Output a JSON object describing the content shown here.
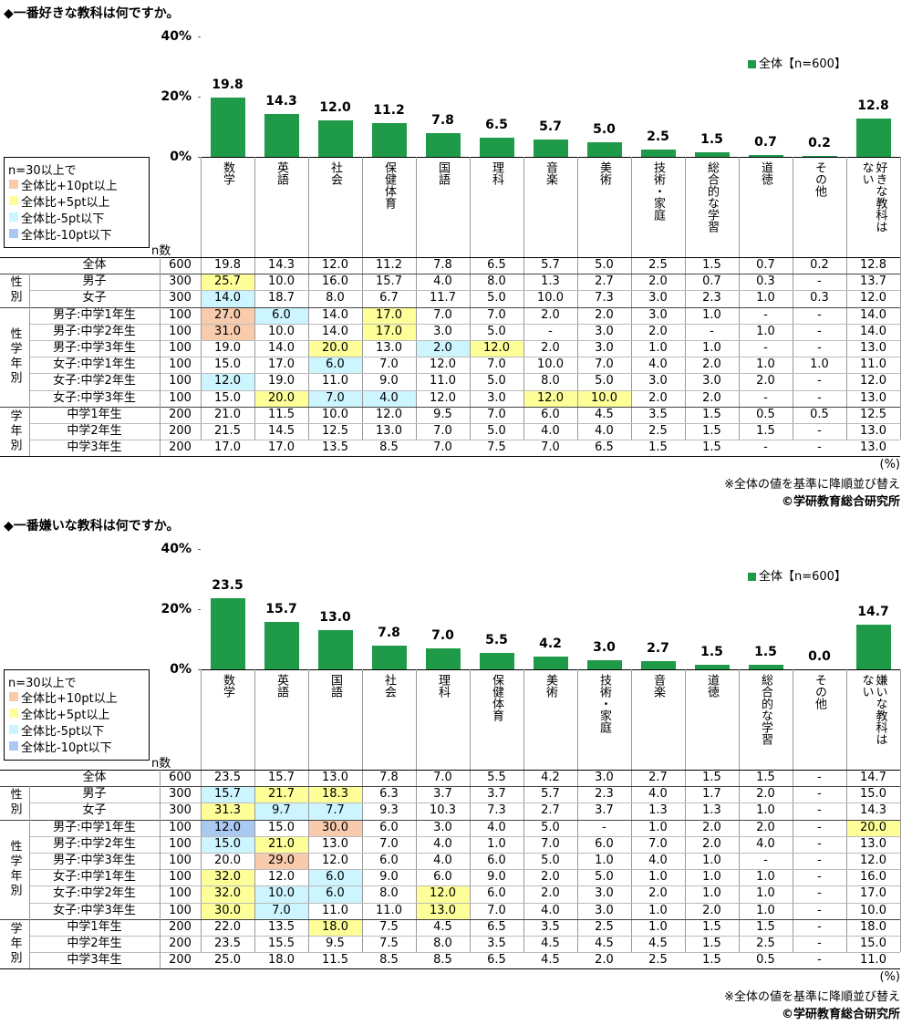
{
  "chart_data": [
    {
      "type": "bar",
      "title": "◆一番好きな教科は何ですか。",
      "categories": [
        "数学",
        "英語",
        "社会",
        "保健体育",
        "国語",
        "理科",
        "音楽",
        "美術",
        "技術・家庭",
        "総合的な学習",
        "道徳",
        "その他",
        "好きな教科はない"
      ],
      "series": [
        {
          "name": "全体【n=600】",
          "color": "#1e9a48",
          "values": [
            19.8,
            14.3,
            12.0,
            11.2,
            7.8,
            6.5,
            5.7,
            5.0,
            2.5,
            1.5,
            0.7,
            0.2,
            12.8
          ],
          "value_labels": [
            "19.8",
            "14.3",
            "12.0",
            "11.2",
            "7.8",
            "6.5",
            "5.7",
            "5.0",
            "2.5",
            "1.5",
            "0.7",
            "0.2",
            "12.8"
          ]
        }
      ],
      "ylim": [
        0,
        40
      ],
      "yticks": [
        {
          "value": 0,
          "label": "0%"
        },
        {
          "value": 20,
          "label": "20%"
        },
        {
          "value": 40,
          "label": "40%"
        }
      ]
    },
    {
      "type": "bar",
      "title": "◆一番嫌いな教科は何ですか。",
      "categories": [
        "数学",
        "英語",
        "国語",
        "社会",
        "理科",
        "保健体育",
        "美術",
        "技術・家庭",
        "音楽",
        "道徳",
        "総合的な学習",
        "その他",
        "嫌いな教科はない"
      ],
      "series": [
        {
          "name": "全体【n=600】",
          "color": "#1e9a48",
          "values": [
            23.5,
            15.7,
            13.0,
            7.8,
            7.0,
            5.5,
            4.2,
            3.0,
            2.7,
            1.5,
            1.5,
            0.0,
            14.7
          ],
          "value_labels": [
            "23.5",
            "15.7",
            "13.0",
            "7.8",
            "7.0",
            "5.5",
            "4.2",
            "3.0",
            "2.7",
            "1.5",
            "1.5",
            "0.0",
            "14.7"
          ]
        }
      ],
      "ylim": [
        0,
        40
      ],
      "yticks": [
        {
          "value": 0,
          "label": "0%"
        },
        {
          "value": 20,
          "label": "20%"
        },
        {
          "value": 40,
          "label": "40%"
        }
      ]
    }
  ],
  "tables": [
    {
      "n_label": "n数",
      "legend": {
        "title": "n=30以上で",
        "items": [
          {
            "label": "全体比+10pt以上",
            "color": "#f8cbad"
          },
          {
            "label": "全体比+5pt以上",
            "color": "#ffff99"
          },
          {
            "label": "全体比-5pt以下",
            "color": "#ccf5ff"
          },
          {
            "label": "全体比-10pt以下",
            "color": "#a9c9f0"
          }
        ]
      },
      "total": {
        "label": "全体",
        "n": 600,
        "values": [
          "19.8",
          "14.3",
          "12.0",
          "11.2",
          "7.8",
          "6.5",
          "5.7",
          "5.0",
          "2.5",
          "1.5",
          "0.7",
          "0.2",
          "12.8"
        ]
      },
      "groups": [
        {
          "label": "性別",
          "rows": [
            {
              "label": "男子",
              "n": 300,
              "values": [
                "25.7",
                "10.0",
                "16.0",
                "15.7",
                "4.0",
                "8.0",
                "1.3",
                "2.7",
                "2.0",
                "0.7",
                "0.3",
                "-",
                "13.7"
              ],
              "cell_colors": {
                "0": "#ffff99"
              }
            },
            {
              "label": "女子",
              "n": 300,
              "values": [
                "14.0",
                "18.7",
                "8.0",
                "6.7",
                "11.7",
                "5.0",
                "10.0",
                "7.3",
                "3.0",
                "2.3",
                "1.0",
                "0.3",
                "12.0"
              ],
              "cell_colors": {
                "0": "#ccf5ff"
              }
            }
          ]
        },
        {
          "label": "性学年別",
          "rows": [
            {
              "label": "男子:中学1年生",
              "n": 100,
              "values": [
                "27.0",
                "6.0",
                "14.0",
                "17.0",
                "7.0",
                "7.0",
                "2.0",
                "2.0",
                "3.0",
                "1.0",
                "-",
                "-",
                "14.0"
              ],
              "cell_colors": {
                "0": "#f8cbad",
                "1": "#ccf5ff",
                "3": "#ffff99"
              }
            },
            {
              "label": "男子:中学2年生",
              "n": 100,
              "values": [
                "31.0",
                "10.0",
                "14.0",
                "17.0",
                "3.0",
                "5.0",
                "-",
                "3.0",
                "2.0",
                "-",
                "1.0",
                "-",
                "14.0"
              ],
              "cell_colors": {
                "0": "#f8cbad",
                "3": "#ffff99"
              }
            },
            {
              "label": "男子:中学3年生",
              "n": 100,
              "values": [
                "19.0",
                "14.0",
                "20.0",
                "13.0",
                "2.0",
                "12.0",
                "2.0",
                "3.0",
                "1.0",
                "1.0",
                "-",
                "-",
                "13.0"
              ],
              "cell_colors": {
                "2": "#ffff99",
                "4": "#ccf5ff",
                "5": "#ffff99"
              }
            },
            {
              "label": "女子:中学1年生",
              "n": 100,
              "values": [
                "15.0",
                "17.0",
                "6.0",
                "7.0",
                "12.0",
                "7.0",
                "10.0",
                "7.0",
                "4.0",
                "2.0",
                "1.0",
                "1.0",
                "11.0"
              ],
              "cell_colors": {
                "2": "#ccf5ff"
              }
            },
            {
              "label": "女子:中学2年生",
              "n": 100,
              "values": [
                "12.0",
                "19.0",
                "11.0",
                "9.0",
                "11.0",
                "5.0",
                "8.0",
                "5.0",
                "3.0",
                "3.0",
                "2.0",
                "-",
                "12.0"
              ],
              "cell_colors": {
                "0": "#ccf5ff"
              }
            },
            {
              "label": "女子:中学3年生",
              "n": 100,
              "values": [
                "15.0",
                "20.0",
                "7.0",
                "4.0",
                "12.0",
                "3.0",
                "12.0",
                "10.0",
                "2.0",
                "2.0",
                "-",
                "-",
                "13.0"
              ],
              "cell_colors": {
                "1": "#ffff99",
                "2": "#ccf5ff",
                "3": "#ccf5ff",
                "6": "#ffff99",
                "7": "#ffff99"
              }
            }
          ]
        },
        {
          "label": "学年別",
          "rows": [
            {
              "label": "中学1年生",
              "n": 200,
              "values": [
                "21.0",
                "11.5",
                "10.0",
                "12.0",
                "9.5",
                "7.0",
                "6.0",
                "4.5",
                "3.5",
                "1.5",
                "0.5",
                "0.5",
                "12.5"
              ],
              "cell_colors": {}
            },
            {
              "label": "中学2年生",
              "n": 200,
              "values": [
                "21.5",
                "14.5",
                "12.5",
                "13.0",
                "7.0",
                "5.0",
                "4.0",
                "4.0",
                "2.5",
                "1.5",
                "1.5",
                "-",
                "13.0"
              ],
              "cell_colors": {}
            },
            {
              "label": "中学3年生",
              "n": 200,
              "values": [
                "17.0",
                "17.0",
                "13.5",
                "8.5",
                "7.0",
                "7.5",
                "7.0",
                "6.5",
                "1.5",
                "1.5",
                "-",
                "-",
                "13.0"
              ],
              "cell_colors": {}
            }
          ]
        }
      ],
      "footnotes": {
        "unit": "(%)",
        "sort_note": "※全体の値を基準に降順並び替え",
        "copyright": "©学研教育総合研究所"
      }
    },
    {
      "n_label": "n数",
      "legend": {
        "title": "n=30以上で",
        "items": [
          {
            "label": "全体比+10pt以上",
            "color": "#f8cbad"
          },
          {
            "label": "全体比+5pt以上",
            "color": "#ffff99"
          },
          {
            "label": "全体比-5pt以下",
            "color": "#ccf5ff"
          },
          {
            "label": "全体比-10pt以下",
            "color": "#a9c9f0"
          }
        ]
      },
      "total": {
        "label": "全体",
        "n": 600,
        "values": [
          "23.5",
          "15.7",
          "13.0",
          "7.8",
          "7.0",
          "5.5",
          "4.2",
          "3.0",
          "2.7",
          "1.5",
          "1.5",
          "-",
          "14.7"
        ]
      },
      "groups": [
        {
          "label": "性別",
          "rows": [
            {
              "label": "男子",
              "n": 300,
              "values": [
                "15.7",
                "21.7",
                "18.3",
                "6.3",
                "3.7",
                "3.7",
                "5.7",
                "2.3",
                "4.0",
                "1.7",
                "2.0",
                "-",
                "15.0"
              ],
              "cell_colors": {
                "0": "#ccf5ff",
                "1": "#ffff99",
                "2": "#ffff99"
              }
            },
            {
              "label": "女子",
              "n": 300,
              "values": [
                "31.3",
                "9.7",
                "7.7",
                "9.3",
                "10.3",
                "7.3",
                "2.7",
                "3.7",
                "1.3",
                "1.3",
                "1.0",
                "-",
                "14.3"
              ],
              "cell_colors": {
                "0": "#ffff99",
                "1": "#ccf5ff",
                "2": "#ccf5ff"
              }
            }
          ]
        },
        {
          "label": "性学年別",
          "rows": [
            {
              "label": "男子:中学1年生",
              "n": 100,
              "values": [
                "12.0",
                "15.0",
                "30.0",
                "6.0",
                "3.0",
                "4.0",
                "5.0",
                "-",
                "1.0",
                "2.0",
                "2.0",
                "-",
                "20.0"
              ],
              "cell_colors": {
                "0": "#a9c9f0",
                "2": "#f8cbad",
                "12": "#ffff99"
              }
            },
            {
              "label": "男子:中学2年生",
              "n": 100,
              "values": [
                "15.0",
                "21.0",
                "13.0",
                "7.0",
                "4.0",
                "1.0",
                "7.0",
                "6.0",
                "7.0",
                "2.0",
                "4.0",
                "-",
                "13.0"
              ],
              "cell_colors": {
                "0": "#ccf5ff",
                "1": "#ffff99"
              }
            },
            {
              "label": "男子:中学3年生",
              "n": 100,
              "values": [
                "20.0",
                "29.0",
                "12.0",
                "6.0",
                "4.0",
                "6.0",
                "5.0",
                "1.0",
                "4.0",
                "1.0",
                "-",
                "-",
                "12.0"
              ],
              "cell_colors": {
                "1": "#f8cbad"
              }
            },
            {
              "label": "女子:中学1年生",
              "n": 100,
              "values": [
                "32.0",
                "12.0",
                "6.0",
                "9.0",
                "6.0",
                "9.0",
                "2.0",
                "5.0",
                "1.0",
                "1.0",
                "1.0",
                "-",
                "16.0"
              ],
              "cell_colors": {
                "0": "#ffff99",
                "2": "#ccf5ff"
              }
            },
            {
              "label": "女子:中学2年生",
              "n": 100,
              "values": [
                "32.0",
                "10.0",
                "6.0",
                "8.0",
                "12.0",
                "6.0",
                "2.0",
                "3.0",
                "2.0",
                "1.0",
                "1.0",
                "-",
                "17.0"
              ],
              "cell_colors": {
                "0": "#ffff99",
                "1": "#ccf5ff",
                "2": "#ccf5ff",
                "4": "#ffff99"
              }
            },
            {
              "label": "女子:中学3年生",
              "n": 100,
              "values": [
                "30.0",
                "7.0",
                "11.0",
                "11.0",
                "13.0",
                "7.0",
                "4.0",
                "3.0",
                "1.0",
                "2.0",
                "1.0",
                "-",
                "10.0"
              ],
              "cell_colors": {
                "0": "#ffff99",
                "1": "#ccf5ff",
                "4": "#ffff99"
              }
            }
          ]
        },
        {
          "label": "学年別",
          "rows": [
            {
              "label": "中学1年生",
              "n": 200,
              "values": [
                "22.0",
                "13.5",
                "18.0",
                "7.5",
                "4.5",
                "6.5",
                "3.5",
                "2.5",
                "1.0",
                "1.5",
                "1.5",
                "-",
                "18.0"
              ],
              "cell_colors": {
                "2": "#ffff99"
              }
            },
            {
              "label": "中学2年生",
              "n": 200,
              "values": [
                "23.5",
                "15.5",
                "9.5",
                "7.5",
                "8.0",
                "3.5",
                "4.5",
                "4.5",
                "4.5",
                "1.5",
                "2.5",
                "-",
                "15.0"
              ],
              "cell_colors": {}
            },
            {
              "label": "中学3年生",
              "n": 200,
              "values": [
                "25.0",
                "18.0",
                "11.5",
                "8.5",
                "8.5",
                "6.5",
                "4.5",
                "2.0",
                "2.5",
                "1.5",
                "0.5",
                "-",
                "11.0"
              ],
              "cell_colors": {}
            }
          ]
        }
      ],
      "footnotes": {
        "unit": "(%)",
        "sort_note": "※全体の値を基準に降順並び替え",
        "copyright": "©学研教育総合研究所"
      }
    }
  ]
}
